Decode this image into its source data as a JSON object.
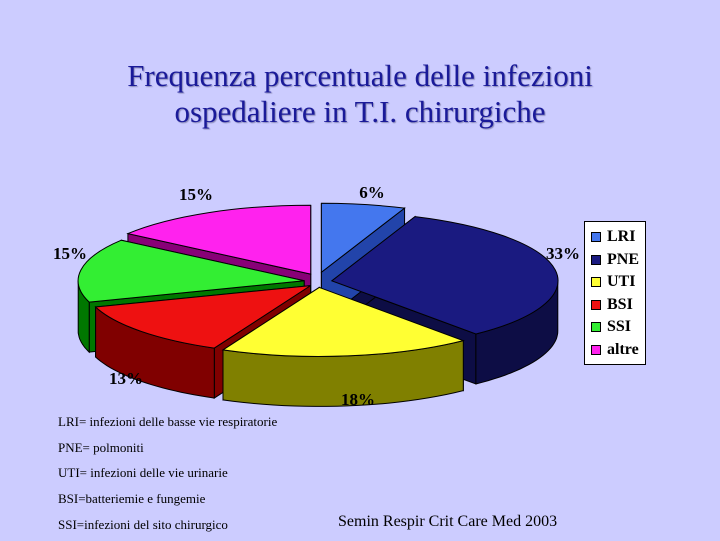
{
  "title": {
    "line1": "Frequenza percentuale delle infezioni",
    "line2": "ospedaliere in T.I. chirurgiche"
  },
  "chart_data": {
    "type": "pie",
    "title": "Frequenza percentuale delle infezioni ospedaliere in T.I. chirurgiche",
    "style": "3d-exploded",
    "legend_position": "right",
    "slices": [
      {
        "name": "LRI",
        "value": 6,
        "label": "6%",
        "color": "#4477ee",
        "side": "#2244aa"
      },
      {
        "name": "PNE",
        "value": 33,
        "label": "33%",
        "color": "#1a1a80",
        "side": "#0d0d45"
      },
      {
        "name": "UTI",
        "value": 18,
        "label": "18%",
        "color": "#ffff33",
        "side": "#808000"
      },
      {
        "name": "BSI",
        "value": 13,
        "label": "13%",
        "color": "#ee1111",
        "side": "#800000"
      },
      {
        "name": "SSI",
        "value": 15,
        "label": "15%",
        "color": "#33ee33",
        "side": "#007700"
      },
      {
        "name": "altre",
        "value": 15,
        "label": "15%",
        "color": "#ff22ee",
        "side": "#880077"
      }
    ]
  },
  "notes": [
    "LRI= infezioni delle basse vie respiratorie",
    "PNE= polmoniti",
    "UTI= infezioni delle vie urinarie",
    "BSI=batteriemie e fungemie",
    "SSI=infezioni del sito chirurgico"
  ],
  "source": "Semin Respir Crit Care Med 2003"
}
